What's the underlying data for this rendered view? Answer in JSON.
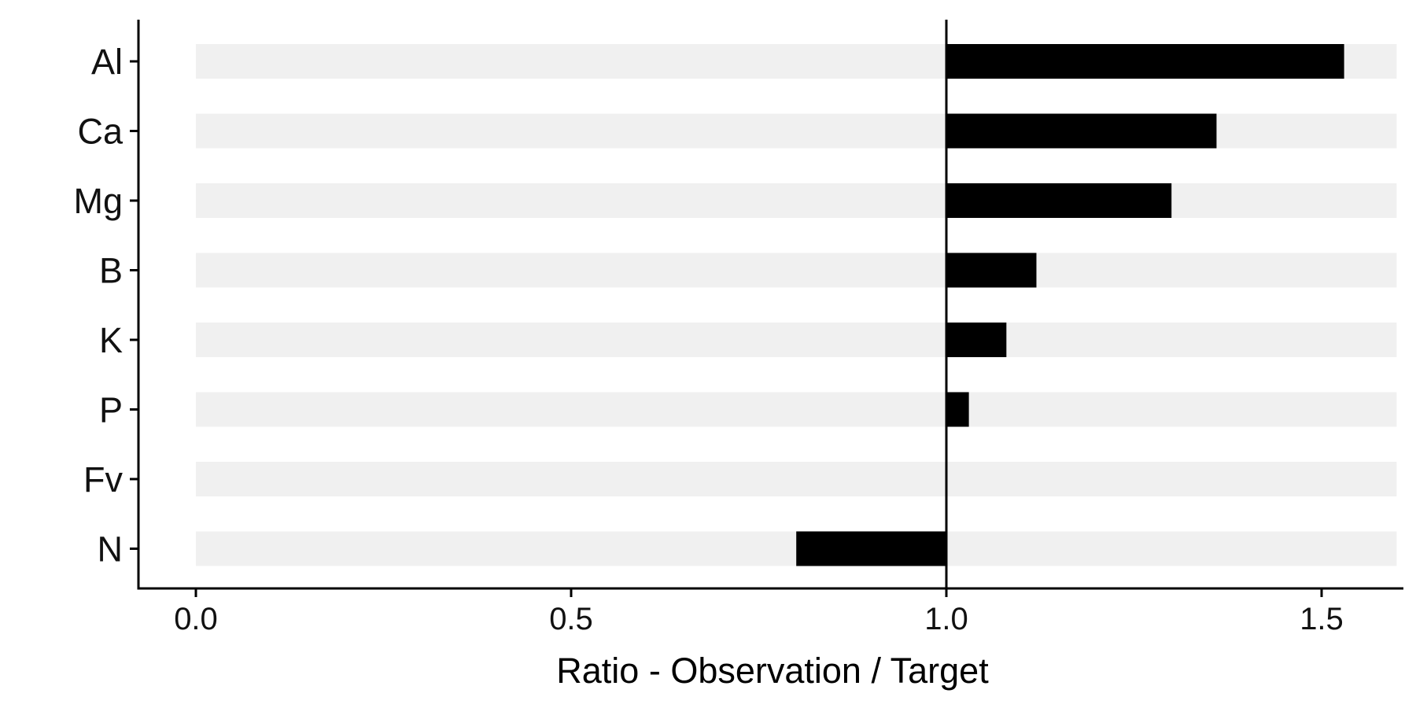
{
  "chart_data": {
    "type": "bar",
    "orientation": "horizontal",
    "categories": [
      "Al",
      "Ca",
      "Mg",
      "B",
      "K",
      "P",
      "Fv",
      "N"
    ],
    "values": [
      1.53,
      1.36,
      1.3,
      1.12,
      1.08,
      1.03,
      1.0,
      0.8
    ],
    "baseline": 1.0,
    "background_band_range": [
      0.0,
      1.6
    ],
    "xlim": [
      -0.076,
      1.6
    ],
    "xticks": [
      0.0,
      0.5,
      1.0,
      1.5
    ],
    "xtick_labels": [
      "0.0",
      "0.5",
      "1.0",
      "1.5"
    ],
    "xlabel": "Ratio - Observation / Target",
    "ylabel": "",
    "title": "",
    "grid": false,
    "colors": {
      "bar": "#000000",
      "band": "#f0f0f0",
      "axis": "#000000"
    }
  }
}
